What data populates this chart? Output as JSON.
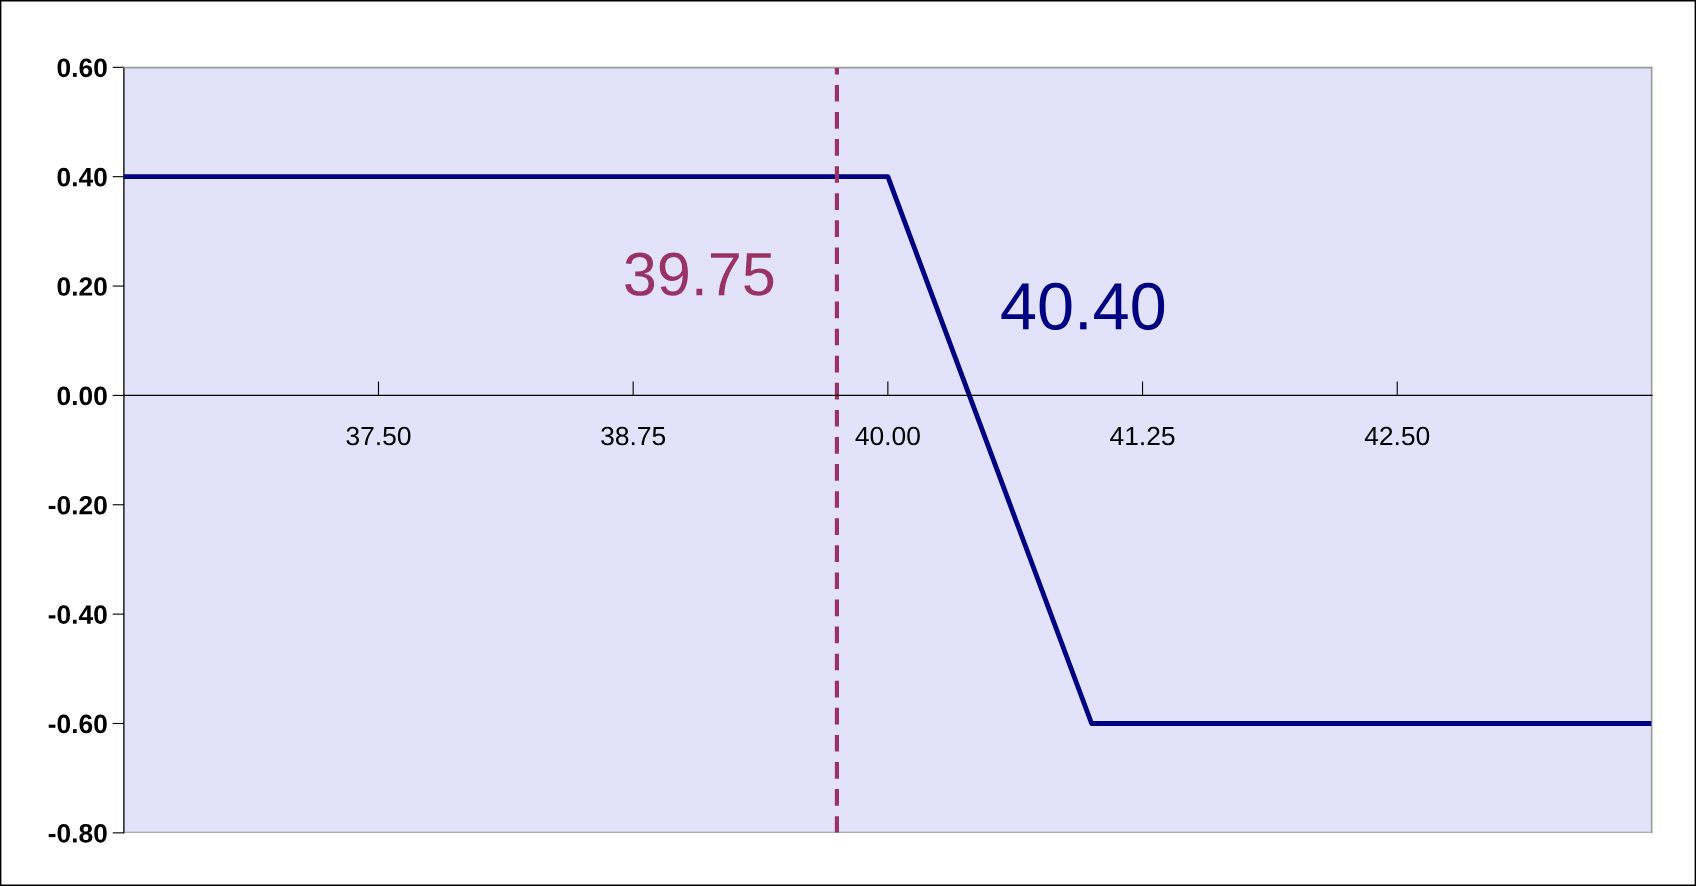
{
  "chart_data": {
    "type": "line",
    "x": [
      36.25,
      40.0,
      41.0,
      43.75
    ],
    "series": [
      {
        "color": "#000080",
        "values": [
          0.4,
          0.4,
          -0.6,
          -0.6
        ]
      }
    ],
    "xlim": [
      36.25,
      43.75
    ],
    "xticks": [
      {
        "value": 37.5,
        "label": "37.50"
      },
      {
        "value": 38.75,
        "label": "38.75"
      },
      {
        "value": 40.0,
        "label": "40.00"
      },
      {
        "value": 41.25,
        "label": "41.25"
      },
      {
        "value": 42.5,
        "label": "42.50"
      }
    ],
    "ylim": [
      -0.8,
      0.6
    ],
    "yticks": [
      {
        "value": -0.8,
        "label": "-0.80"
      },
      {
        "value": -0.6,
        "label": "-0.60"
      },
      {
        "value": -0.4,
        "label": "-0.40"
      },
      {
        "value": -0.2,
        "label": "-0.20"
      },
      {
        "value": 0.0,
        "label": "0.00"
      },
      {
        "value": 0.2,
        "label": "0.20"
      },
      {
        "value": 0.4,
        "label": "0.40"
      },
      {
        "value": 0.6,
        "label": "0.60"
      }
    ],
    "ref_lines": [
      {
        "axis": "x",
        "value": 39.75,
        "label": "39.75",
        "color": "#993366",
        "line_style": "dashed"
      }
    ],
    "annotations": [
      {
        "text": "40.40",
        "x": 40.4,
        "y": 0.0
      }
    ],
    "grid": false,
    "legend": false,
    "marker": "none",
    "line_style": "solid"
  }
}
